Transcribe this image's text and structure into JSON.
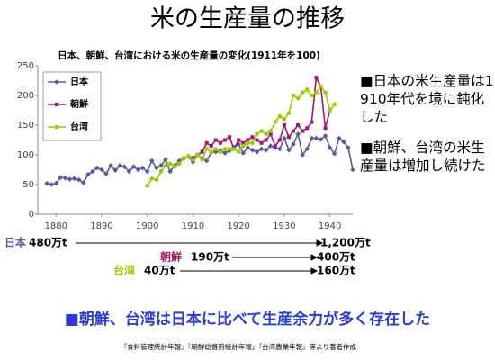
{
  "slide": {
    "title": "米の生産量の推移",
    "bullets": [
      "■日本の米生産量は1910年代を境に鈍化した",
      "■朝鮮、台湾の米生産量は増加し続けた"
    ],
    "production": [
      {
        "region": "日本",
        "from": "480万t",
        "to": "1,200万t"
      },
      {
        "region": "朝鮮",
        "from": "190万t",
        "to": "400万t"
      },
      {
        "region": "台湾",
        "from": "40万t",
        "to": "160万t"
      }
    ],
    "conclusion": "■朝鮮、台湾は日本に比べて生産余力が多く存在した",
    "source": "『食料管理統計年報』『朝鮮総督府統計年報』『台湾農業年報』等より著者作成"
  },
  "chart_data": {
    "type": "line",
    "title": "日本、朝鮮、台湾における米の生産量の変化(1911年を100)",
    "x": [
      1878,
      1879,
      1880,
      1881,
      1882,
      1883,
      1884,
      1885,
      1886,
      1887,
      1888,
      1889,
      1890,
      1891,
      1892,
      1893,
      1894,
      1895,
      1896,
      1897,
      1898,
      1899,
      1900,
      1901,
      1902,
      1903,
      1904,
      1905,
      1906,
      1907,
      1908,
      1909,
      1910,
      1911,
      1912,
      1913,
      1914,
      1915,
      1916,
      1917,
      1918,
      1919,
      1920,
      1921,
      1922,
      1923,
      1924,
      1925,
      1926,
      1927,
      1928,
      1929,
      1930,
      1931,
      1932,
      1933,
      1934,
      1935,
      1936,
      1937,
      1938,
      1939,
      1940,
      1941,
      1942,
      1943,
      1944,
      1945
    ],
    "series": [
      {
        "name": "日本",
        "color": "#5a5a9c",
        "marker": "diamond",
        "values": [
          52,
          50,
          52,
          62,
          61,
          59,
          60,
          58,
          53,
          67,
          72,
          78,
          75,
          68,
          82,
          74,
          82,
          80,
          72,
          80,
          75,
          78,
          72,
          90,
          78,
          82,
          92,
          72,
          82,
          90,
          94,
          97,
          88,
          100,
          94,
          90,
          104,
          105,
          108,
          103,
          107,
          113,
          118,
          103,
          112,
          108,
          105,
          110,
          108,
          115,
          112,
          110,
          128,
          108,
          118,
          135,
          100,
          110,
          128,
          128,
          126,
          132,
          112,
          102,
          128,
          122,
          112,
          75
        ]
      },
      {
        "name": "朝鮮",
        "color": "#a0186c",
        "marker": "square",
        "values": [
          null,
          null,
          null,
          null,
          null,
          null,
          null,
          null,
          null,
          null,
          null,
          null,
          null,
          null,
          null,
          null,
          null,
          null,
          null,
          null,
          null,
          null,
          null,
          null,
          null,
          null,
          null,
          null,
          null,
          null,
          null,
          null,
          95,
          100,
          105,
          120,
          115,
          125,
          120,
          125,
          130,
          110,
          125,
          120,
          125,
          130,
          125,
          120,
          125,
          135,
          115,
          125,
          150,
          130,
          140,
          150,
          140,
          145,
          155,
          230,
          215,
          145,
          175,
          null,
          null,
          null,
          null,
          null
        ]
      },
      {
        "name": "台湾",
        "color": "#99cc00",
        "marker": "circle",
        "values": [
          null,
          null,
          null,
          null,
          null,
          null,
          null,
          null,
          null,
          null,
          null,
          null,
          null,
          null,
          null,
          null,
          null,
          null,
          null,
          null,
          null,
          null,
          48,
          60,
          58,
          72,
          82,
          85,
          80,
          85,
          95,
          98,
          92,
          100,
          92,
          110,
          105,
          110,
          105,
          110,
          110,
          110,
          105,
          115,
          120,
          120,
          135,
          140,
          135,
          140,
          155,
          165,
          160,
          170,
          200,
          195,
          205,
          210,
          200,
          205,
          215,
          205,
          175,
          185,
          null,
          null,
          null,
          null
        ]
      }
    ],
    "xlim": [
      1876,
      1945
    ],
    "xticks": [
      1880,
      1890,
      1900,
      1910,
      1920,
      1930,
      1940
    ],
    "ylim": [
      0,
      250
    ],
    "yticks": [
      0,
      50,
      100,
      150,
      200,
      250
    ],
    "grid": false,
    "legend": "upper left"
  }
}
